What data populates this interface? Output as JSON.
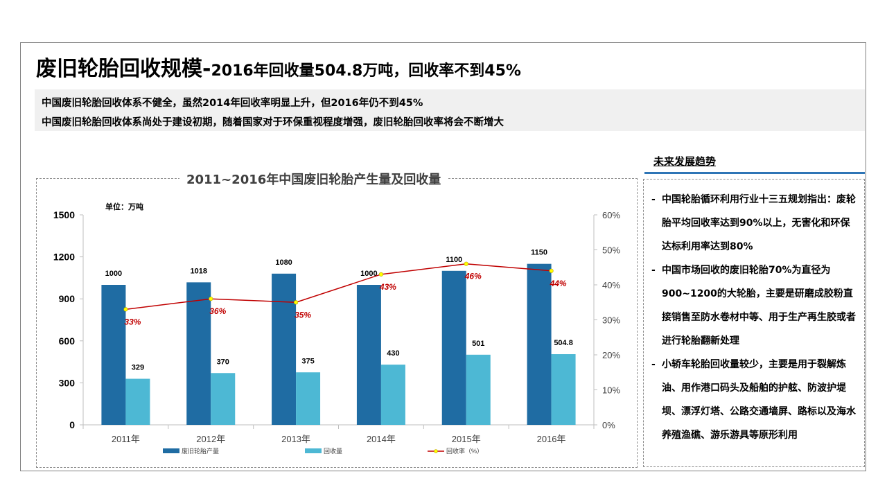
{
  "slide": {
    "title_main": "废旧轮胎回收规模-",
    "title_sub": "2016年回收量504.8万吨，回收率不到45%",
    "summary": [
      "中国废旧轮胎回收体系不健全，虽然2014年回收率明显上升，但2016年仍不到45%",
      "中国废旧轮胎回收体系尚处于建设初期，随着国家对于环保重视程度增强，废旧轮胎回收率将会不断增大"
    ]
  },
  "trends": {
    "heading": "未来发展趋势",
    "items": [
      {
        "dash": "-",
        "text": "中国轮胎循环利用行业十三五规划指出：废轮胎平均回收率达到90%以上，无害化和环保达标利用率达到80%"
      },
      {
        "dash": "-",
        "text": "中国市场回收的废旧轮胎70%为直径为900~1200的大轮胎，主要是研磨成胶粉直接销售至防水卷材中等、用于生产再生胶或者进行轮胎翻新处理"
      },
      {
        "dash": "-",
        "text": "小轿车轮胎回收量较少，主要是用于裂解炼油、用作港口码头及船舶的护舷、防波护堤坝、漂浮灯塔、公路交通墙屏、路标以及海水养殖渔礁、游乐游具等原形利用"
      }
    ]
  },
  "chart_data": {
    "type": "bar",
    "title": "2011~2016年中国废旧轮胎产生量及回收量",
    "unit_label": "单位：万吨",
    "categories": [
      "2011年",
      "2012年",
      "2013年",
      "2014年",
      "2015年",
      "2016年"
    ],
    "series": [
      {
        "name": "废旧轮胎产量",
        "type": "bar",
        "axis": "left",
        "color": "#1f6ca3",
        "values": [
          1000,
          1018,
          1080,
          1000,
          1100,
          1150
        ],
        "labels": [
          "1000",
          "1018",
          "1080",
          "1000",
          "1100",
          "1150"
        ]
      },
      {
        "name": "回收量",
        "type": "bar",
        "axis": "left",
        "color": "#4db8d4",
        "values": [
          329,
          370,
          375,
          430,
          501,
          504.8
        ],
        "labels": [
          "329",
          "370",
          "375",
          "430",
          "501",
          "504.8"
        ]
      },
      {
        "name": "回收率（%）",
        "type": "line",
        "axis": "right",
        "color": "#c00000",
        "marker_color": "#ffff00",
        "values": [
          33,
          36,
          35,
          43,
          46,
          44
        ],
        "labels": [
          "33%",
          "36%",
          "35%",
          "43%",
          "46%",
          "44%"
        ]
      }
    ],
    "y_left": {
      "min": 0,
      "max": 1500,
      "ticks": [
        "0",
        "300",
        "600",
        "900",
        "1200",
        "1500"
      ]
    },
    "y_right": {
      "min": 0,
      "max": 60,
      "ticks": [
        "0%",
        "10%",
        "20%",
        "30%",
        "40%",
        "50%",
        "60%"
      ]
    },
    "grid": false,
    "legend_position": "bottom"
  }
}
